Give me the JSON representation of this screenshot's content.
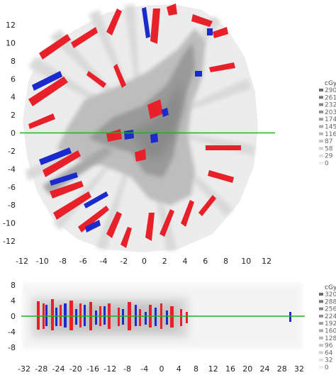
{
  "chart_data": [
    {
      "type": "heatmap",
      "panel": "top",
      "x_ticks": [
        -12,
        -10,
        -8,
        -6,
        -4,
        -2,
        0,
        2,
        4,
        6,
        8,
        10,
        12
      ],
      "y_ticks": [
        12,
        10,
        8,
        6,
        4,
        2,
        0,
        -2,
        -4,
        -6,
        -8,
        -10,
        -12
      ],
      "xlim": [
        -13,
        14
      ],
      "ylim": [
        -13,
        13.5
      ],
      "reference_line_y": 0,
      "reference_line_color": "#22b022",
      "legend": {
        "title": "cGy",
        "entries": [
          "290",
          "261",
          "232",
          "203",
          "174",
          "145",
          "116",
          "87",
          "58",
          "29",
          "0"
        ],
        "shades": [
          "#6a6a6a",
          "#777777",
          "#848484",
          "#919191",
          "#9e9e9e",
          "#ababab",
          "#b8b8b8",
          "#c5c5c5",
          "#d2d2d2",
          "#dfdfdf",
          "#ececec"
        ]
      },
      "overlay_colors": {
        "red": "#e8202a",
        "blue": "#1a2acc"
      }
    },
    {
      "type": "heatmap",
      "panel": "bottom",
      "x_ticks": [
        -32,
        -28,
        -24,
        -20,
        -16,
        -12,
        -8,
        -4,
        0,
        4,
        8,
        12,
        16,
        20,
        24,
        28,
        32
      ],
      "y_ticks": [
        8,
        4,
        0,
        -4,
        -8
      ],
      "xlim": [
        -34,
        34
      ],
      "ylim": [
        -10,
        10
      ],
      "reference_line_y": 0,
      "reference_line_color": "#22b022",
      "legend": {
        "title": "cGy",
        "entries": [
          "320",
          "288",
          "256",
          "224",
          "192",
          "160",
          "128",
          "96",
          "64",
          "32",
          "0"
        ],
        "shades": [
          "#6a6a6a",
          "#777777",
          "#848484",
          "#919191",
          "#9e9e9e",
          "#ababab",
          "#b8b8b8",
          "#c5c5c5",
          "#d2d2d2",
          "#dfdfdf",
          "#ececec"
        ]
      },
      "overlay_colors": {
        "red": "#e8202a",
        "blue": "#1a2acc"
      }
    }
  ]
}
